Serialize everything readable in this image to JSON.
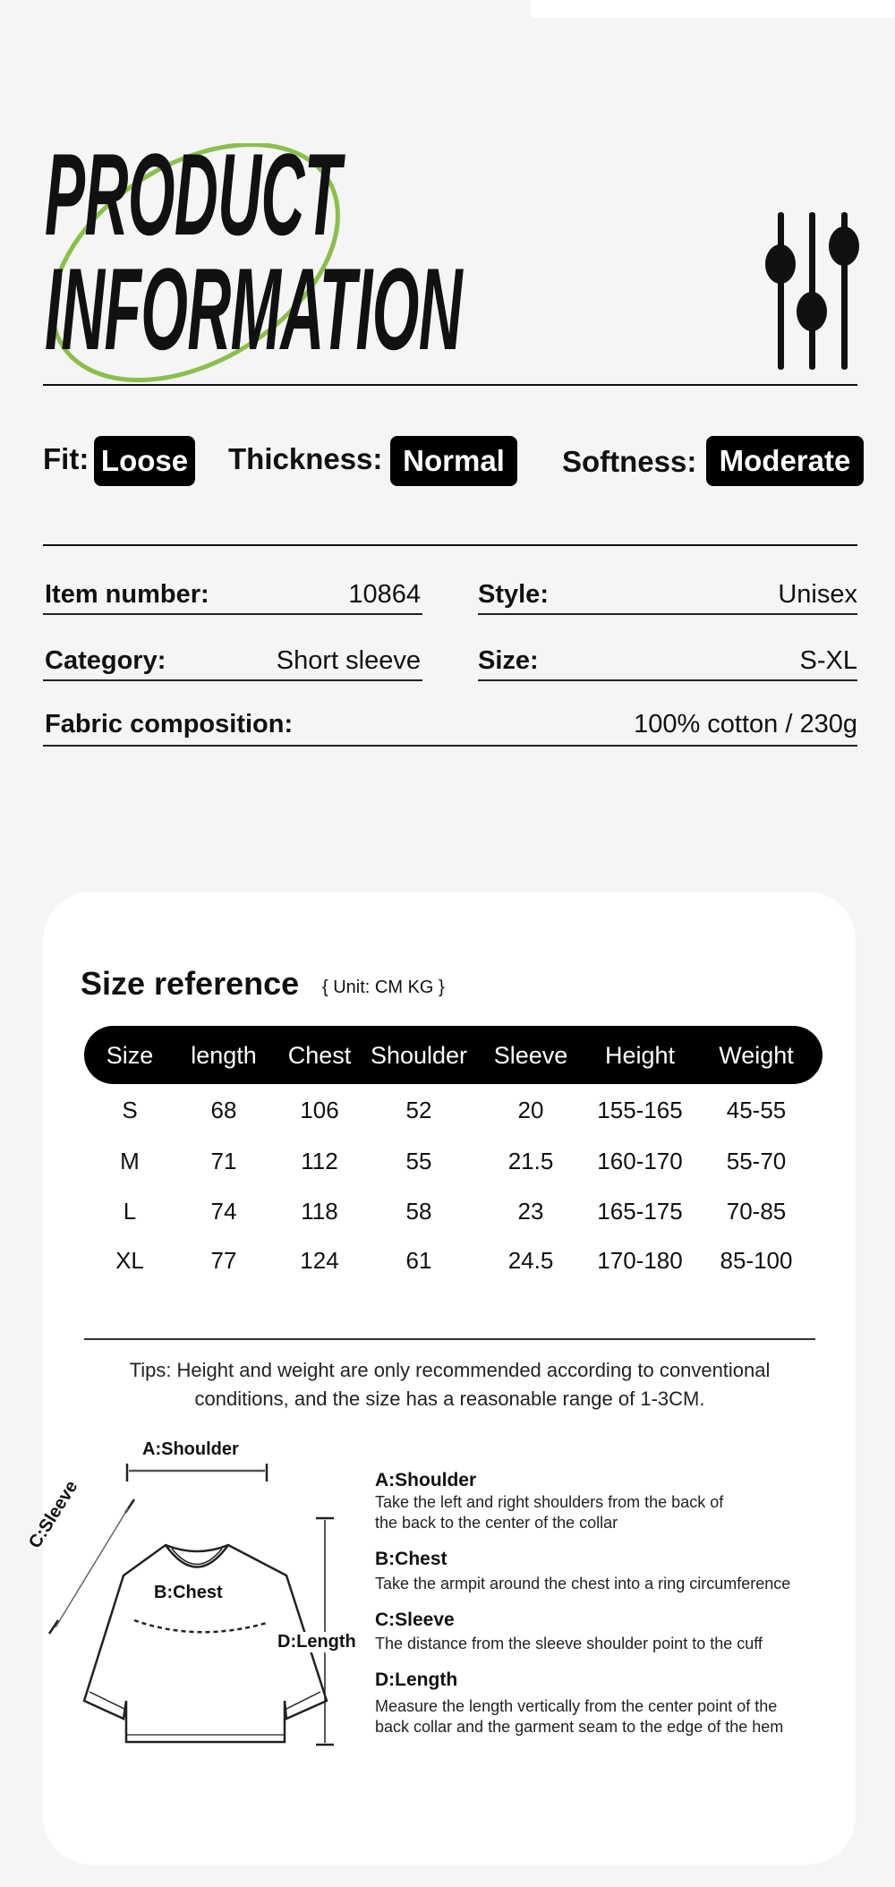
{
  "header": {
    "title_line1": "PRODUCT",
    "title_line2": "INFORMATION",
    "accent_color": "#8bbf4a",
    "icon": "sliders-icon"
  },
  "attributes": [
    {
      "label": "Fit:",
      "value": "Loose"
    },
    {
      "label": "Thickness:",
      "value": "Normal"
    },
    {
      "label": "Softness:",
      "value": "Moderate"
    }
  ],
  "specs": {
    "item_number": {
      "label": "Item number:",
      "value": "10864"
    },
    "style": {
      "label": "Style:",
      "value": "Unisex"
    },
    "category": {
      "label": "Category:",
      "value": "Short sleeve"
    },
    "size": {
      "label": "Size:",
      "value": "S-XL"
    },
    "fabric": {
      "label": "Fabric composition:",
      "value": "100% cotton / 230g"
    }
  },
  "size_reference": {
    "title": "Size reference",
    "unit": "{ Unit: CM KG }",
    "columns": [
      "Size",
      "length",
      "Chest",
      "Shoulder",
      "Sleeve",
      "Height",
      "Weight"
    ],
    "rows": [
      [
        "S",
        "68",
        "106",
        "52",
        "20",
        "155-165",
        "45-55"
      ],
      [
        "M",
        "71",
        "112",
        "55",
        "21.5",
        "160-170",
        "55-70"
      ],
      [
        "L",
        "74",
        "118",
        "58",
        "23",
        "165-175",
        "70-85"
      ],
      [
        "XL",
        "77",
        "124",
        "61",
        "24.5",
        "170-180",
        "85-100"
      ]
    ],
    "tips_line1": "Tips: Height and weight are only recommended according to conventional",
    "tips_line2": "conditions, and the size has a reasonable range of 1-3CM."
  },
  "diagram": {
    "labels": {
      "shoulder": "A:Shoulder",
      "sleeve": "C:Sleeve",
      "chest": "B:Chest",
      "length": "D:Length"
    },
    "items": [
      {
        "title": "A:Shoulder",
        "desc1": "Take the left and right shoulders from the back of",
        "desc2": "the back to the center of the collar"
      },
      {
        "title": "B:Chest",
        "desc1": "Take the armpit around the chest into a ring circumference"
      },
      {
        "title": "C:Sleeve",
        "desc1": "The distance from the sleeve shoulder point to the cuff"
      },
      {
        "title": "D:Length",
        "desc1": "Measure the length vertically from the center point of the",
        "desc2": "back collar and the garment seam to the edge of the hem"
      }
    ]
  }
}
